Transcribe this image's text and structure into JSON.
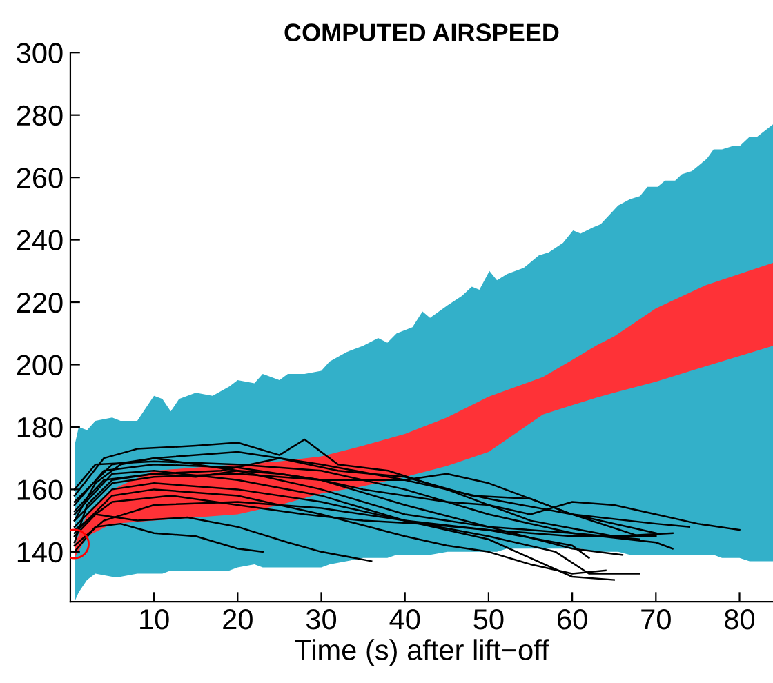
{
  "chart_data": {
    "type": "line",
    "title": "COMPUTED AIRSPEED",
    "xlabel": "Time (s) after lift−off",
    "xlim": [
      0,
      84
    ],
    "ylim": [
      124,
      300
    ],
    "xticks": [
      10,
      20,
      30,
      40,
      50,
      60,
      70,
      80
    ],
    "yticks": [
      140,
      160,
      180,
      200,
      220,
      240,
      260,
      280,
      300
    ],
    "grid": false,
    "legend": false,
    "series": [
      {
        "type": "area",
        "color": "#33b0c9",
        "x": [
          0.5,
          1,
          2,
          3,
          5,
          6,
          8,
          9,
          10,
          11,
          12,
          13,
          15,
          17,
          19,
          20,
          22,
          23,
          25,
          26,
          28,
          30,
          31,
          33,
          35,
          36.8,
          37.9,
          39,
          40.9,
          42.1,
          43,
          45.1,
          46.8,
          48,
          48.9,
          50.1,
          51,
          52.2,
          54.2,
          56,
          57.2,
          58.9,
          60.1,
          61,
          62.5,
          63.4,
          65.5,
          66.9,
          68.1,
          69,
          70.2,
          71.1,
          72.3,
          73.1,
          74.3,
          76.1,
          76.9,
          77.9,
          79.1,
          80,
          81.2,
          82.1,
          84
        ],
        "values": [
          null,
          null,
          null,
          null,
          null,
          null,
          null,
          null,
          null,
          null,
          null,
          null,
          null,
          null,
          null,
          null,
          null,
          null,
          null,
          null,
          null,
          null,
          null,
          null,
          null,
          null,
          null,
          null,
          null,
          null,
          null,
          null,
          null,
          null,
          null,
          null,
          null,
          null,
          null,
          null,
          null,
          null,
          null,
          null,
          null,
          null,
          null,
          null,
          null,
          null,
          null,
          null,
          null,
          null,
          null,
          null,
          null,
          null,
          null,
          null,
          null,
          null,
          null
        ],
        "upper": [
          174,
          180,
          179,
          182,
          183,
          182,
          182,
          186,
          190,
          189,
          185,
          189,
          191,
          190,
          193,
          195,
          194,
          197,
          195,
          197,
          197,
          198,
          201,
          204,
          206,
          208.5,
          207,
          210,
          212,
          217,
          215,
          219,
          222,
          225,
          224,
          230,
          227,
          229,
          231,
          235,
          236,
          239,
          243,
          242,
          244,
          245,
          251,
          253,
          254,
          257,
          257,
          259,
          259,
          261,
          262,
          266,
          269,
          269,
          270,
          270,
          273,
          273,
          277
        ],
        "lower": [
          124,
          127,
          131,
          133,
          132,
          132,
          133,
          133,
          133,
          133,
          134,
          134,
          134,
          134,
          134,
          135,
          136,
          135,
          135,
          135,
          135,
          135,
          136,
          137,
          138,
          138,
          138,
          139,
          139,
          139,
          139,
          140,
          140,
          140,
          140,
          140,
          140,
          141,
          141,
          141,
          141,
          141,
          141,
          141,
          140,
          140,
          140,
          139,
          139,
          139,
          139,
          139,
          139,
          139,
          139,
          139,
          139,
          138,
          138,
          138,
          137,
          137,
          137
        ]
      },
      {
        "type": "area",
        "color": "#fe3237",
        "x": [
          0.5,
          2,
          5,
          10,
          20,
          25,
          30,
          35,
          40,
          45,
          50,
          56.5,
          60,
          63,
          65,
          70,
          76,
          84
        ],
        "values": [
          null,
          null,
          null,
          null,
          null,
          null,
          null,
          null,
          null,
          null,
          null,
          null,
          null,
          null,
          null,
          null,
          null,
          null
        ],
        "upper": [
          142,
          152,
          160,
          166,
          168,
          169,
          170.6,
          174,
          177.8,
          183,
          189.7,
          196,
          201.5,
          206.3,
          209,
          218,
          225.5,
          232.6
        ],
        "lower": [
          138,
          145,
          149,
          150,
          152,
          155,
          158.7,
          161,
          164,
          167.5,
          172,
          184,
          187,
          189.5,
          191,
          194.5,
          199.5,
          206
        ]
      },
      {
        "color": "#000000",
        "x": [
          0.5,
          2,
          5,
          10,
          15,
          20,
          25,
          30,
          35,
          40,
          45,
          50,
          55,
          60,
          65,
          70,
          75,
          80
        ],
        "values": [
          143,
          155,
          163,
          165,
          164,
          166,
          165,
          163,
          160,
          158,
          156,
          155,
          152,
          156,
          155,
          152,
          149,
          147
        ]
      },
      {
        "color": "#000000",
        "x": [
          0.5,
          3,
          6,
          10,
          20,
          30,
          40,
          50,
          60,
          70,
          74
        ],
        "values": [
          150,
          162,
          168,
          170,
          172,
          168,
          163,
          157,
          152,
          149,
          148
        ]
      },
      {
        "color": "#000000",
        "x": [
          0.5,
          4,
          8,
          15,
          20,
          25,
          28,
          32,
          38,
          45,
          55,
          65,
          72
        ],
        "values": [
          158,
          170,
          173,
          174,
          175,
          171,
          176,
          168,
          166,
          160,
          150,
          145,
          146
        ]
      },
      {
        "color": "#000000",
        "x": [
          0.5,
          3,
          6,
          10,
          15,
          20,
          23
        ],
        "values": [
          140,
          148,
          149,
          146,
          145,
          141,
          140
        ]
      },
      {
        "color": "#000000",
        "x": [
          0.5,
          3,
          8,
          14,
          20,
          26,
          30,
          36
        ],
        "values": [
          145,
          152,
          150,
          151,
          148,
          143,
          140,
          137
        ]
      },
      {
        "color": "#000000",
        "x": [
          0.5,
          5,
          10,
          20,
          30,
          40,
          45,
          50,
          55,
          60,
          64
        ],
        "values": [
          146,
          158,
          160,
          158,
          152,
          145,
          142,
          140,
          136,
          133,
          134
        ]
      },
      {
        "color": "#000000",
        "x": [
          0.5,
          5,
          10,
          20,
          30,
          40,
          50,
          60,
          65
        ],
        "values": [
          148,
          160,
          162,
          160,
          156,
          150,
          144,
          132,
          131
        ]
      },
      {
        "color": "#000000",
        "x": [
          0.5,
          5,
          10,
          20,
          30,
          40,
          50,
          58,
          62,
          68
        ],
        "values": [
          152,
          165,
          166,
          163,
          158,
          150,
          145,
          140,
          133,
          133
        ]
      },
      {
        "color": "#000000",
        "x": [
          0.5,
          4,
          10,
          20,
          30,
          40,
          50,
          60,
          66
        ],
        "values": [
          155,
          166,
          168,
          167,
          163,
          155,
          148,
          141,
          139
        ]
      },
      {
        "color": "#000000",
        "x": [
          0.5,
          3,
          10,
          20,
          30,
          40,
          50,
          60,
          70,
          72
        ],
        "values": [
          160,
          168,
          169,
          168,
          166,
          160,
          152,
          146,
          143,
          141
        ]
      },
      {
        "color": "#000000",
        "x": [
          0.5,
          5,
          12,
          20,
          28,
          35,
          42,
          50,
          60,
          70
        ],
        "values": [
          147,
          156,
          158,
          155,
          152,
          150,
          149,
          147,
          145,
          145
        ]
      },
      {
        "color": "#000000",
        "x": [
          0.5,
          5,
          10,
          20,
          30,
          40,
          45,
          50,
          60,
          70
        ],
        "values": [
          150,
          162,
          164,
          165,
          163,
          163,
          165,
          162,
          152,
          146
        ]
      },
      {
        "color": "#000000",
        "x": [
          0.5,
          4,
          10,
          20,
          30,
          40,
          50,
          60,
          62
        ],
        "values": [
          142,
          150,
          155,
          156,
          154,
          150,
          147,
          142,
          138
        ]
      },
      {
        "color": "#000000",
        "x": [
          0.5,
          4,
          10,
          18,
          25,
          32,
          40,
          48,
          55,
          60,
          68
        ],
        "values": [
          153,
          163,
          165,
          166,
          170,
          166,
          164,
          158,
          157,
          152,
          145
        ]
      },
      {
        "color": "#000000",
        "x": [
          0.5,
          5,
          10,
          20,
          30,
          40,
          50,
          60,
          68
        ],
        "values": [
          156,
          168,
          170,
          166,
          160,
          152,
          148,
          146,
          144
        ]
      },
      {
        "type": "scatter",
        "marker": "circle",
        "color": "#ff0000",
        "x": [
          0.5
        ],
        "values": [
          142.5
        ]
      }
    ]
  }
}
